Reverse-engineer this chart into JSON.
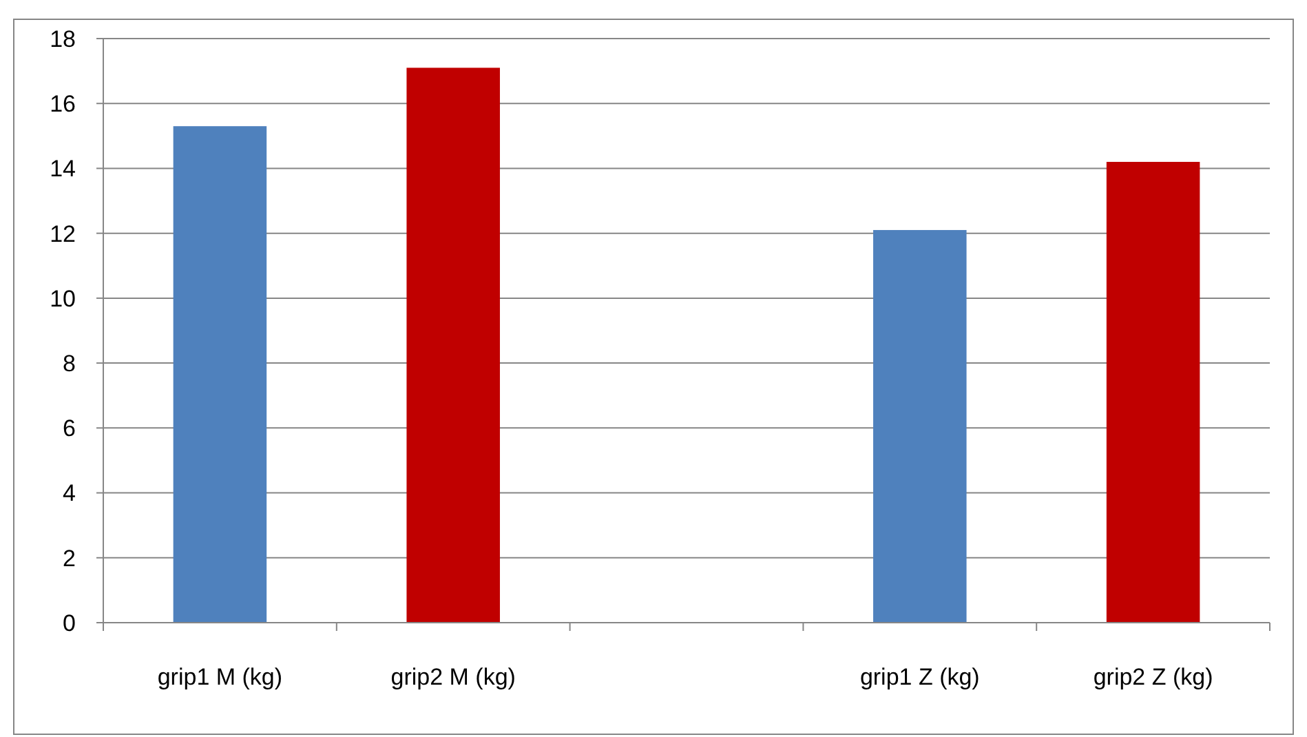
{
  "chart_data": {
    "type": "bar",
    "categories": [
      "grip1 M (kg)",
      "grip2 M (kg)",
      null,
      "grip1 Z (kg)",
      "grip2 Z (kg)"
    ],
    "values": [
      15.3,
      17.1,
      null,
      12.1,
      14.2
    ],
    "colors": [
      "#4f81bd",
      "#c00000",
      null,
      "#4f81bd",
      "#c00000"
    ],
    "ylim": [
      0,
      18
    ],
    "yticks": [
      0,
      2,
      4,
      6,
      8,
      10,
      12,
      14,
      16,
      18
    ],
    "grid": "y"
  }
}
